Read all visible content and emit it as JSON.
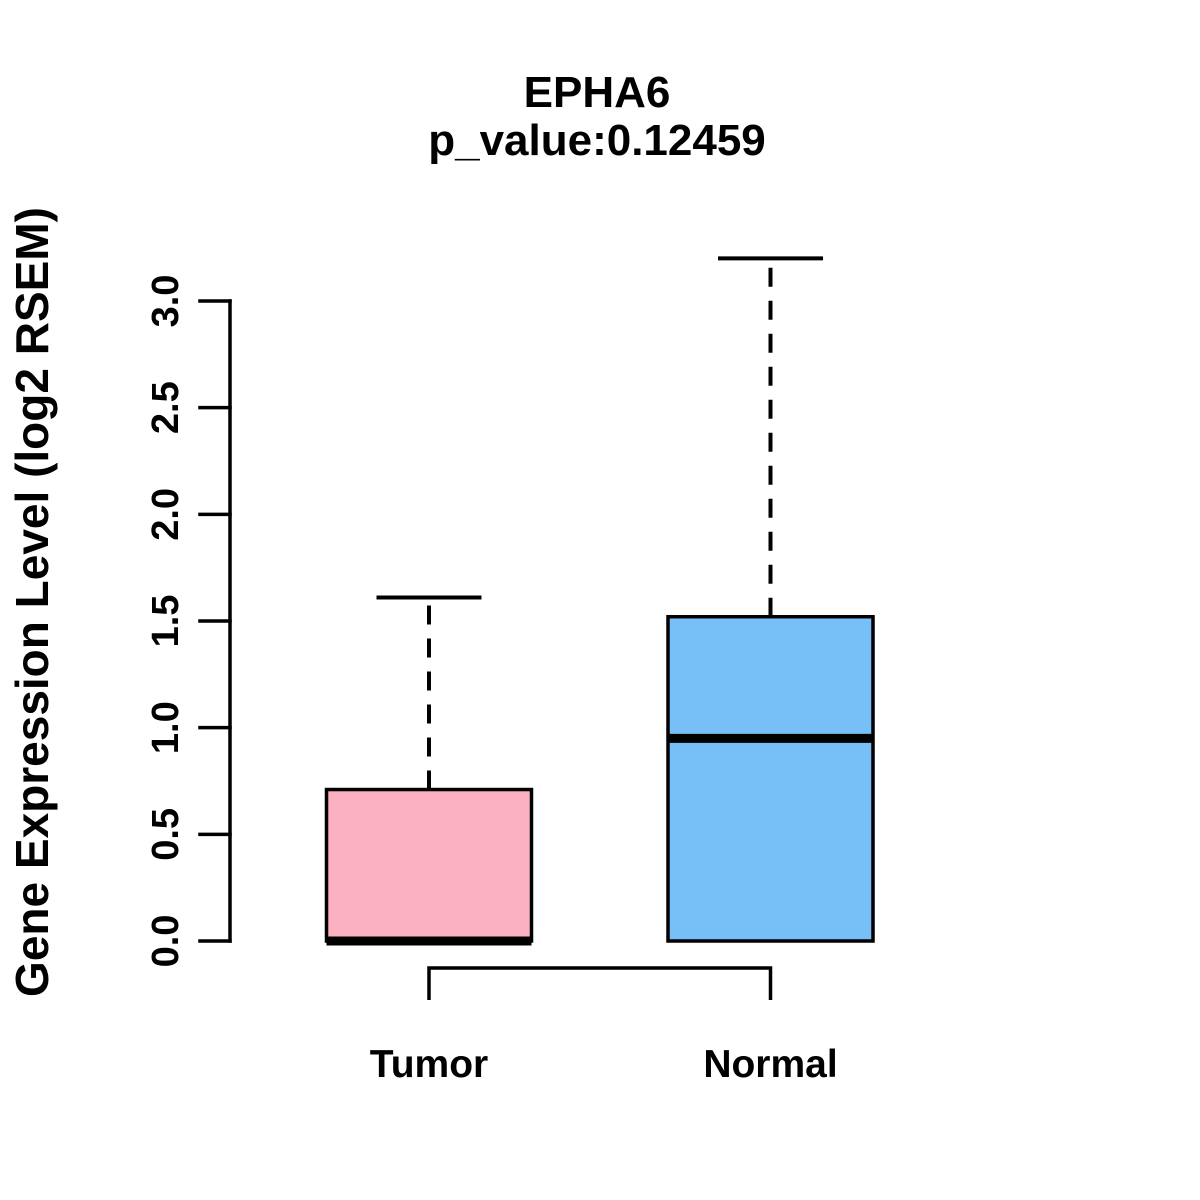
{
  "figure": {
    "background": "#FFFFFF",
    "text_color": "#000000"
  },
  "chart_data": {
    "type": "boxplot",
    "title": "EPHA6",
    "subtitle": "p_value:0.12459",
    "ylabel": "Gene Expression Level (log2 RSEM)",
    "xlabel": "",
    "categories": [
      "Tumor",
      "Normal"
    ],
    "series": [
      {
        "name": "Tumor",
        "color": "#FCB1C3",
        "min": 0.0,
        "q1": 0.0,
        "median": 0.0,
        "q3": 0.71,
        "max": 1.61
      },
      {
        "name": "Normal",
        "color": "#76BFF7",
        "min": 0.0,
        "q1": 0.0,
        "median": 0.95,
        "q3": 1.52,
        "max": 3.2
      }
    ],
    "yticks": [
      "0.0",
      "0.5",
      "1.0",
      "1.5",
      "2.0",
      "2.5",
      "3.0"
    ],
    "ylim": [
      0.0,
      3.0
    ],
    "grid": false,
    "legend": "none",
    "box_border_color": "#000000",
    "whisker_style": "dashed",
    "comparison_bracket": {
      "from": "Tumor",
      "to": "Normal"
    }
  }
}
